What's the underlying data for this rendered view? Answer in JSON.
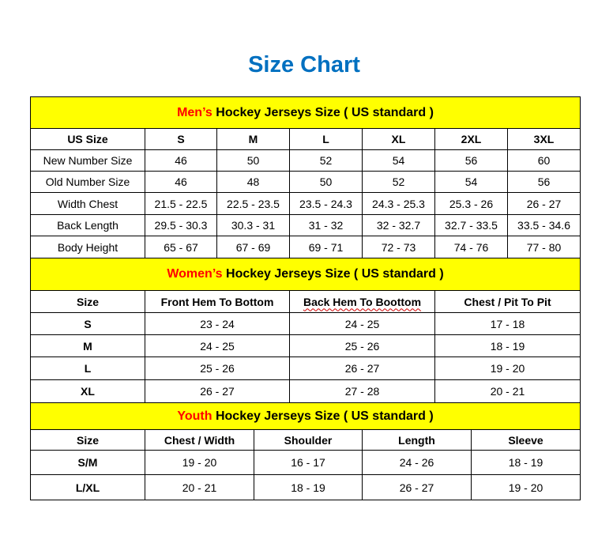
{
  "title": "Size Chart",
  "colors": {
    "title": "#0070c0",
    "header_bg": "#ffff00",
    "accent": "#ff0000"
  },
  "sections": [
    {
      "id": "mens",
      "header_accent": "Men’s",
      "header_rest": " Hockey Jerseys Size ( US standard )",
      "columns": [
        "US Size",
        "S",
        "M",
        "L",
        "XL",
        "2XL",
        "3XL"
      ],
      "rows": [
        [
          "New Number Size",
          "46",
          "50",
          "52",
          "54",
          "56",
          "60"
        ],
        [
          "Old Number Size",
          "46",
          "48",
          "50",
          "52",
          "54",
          "56"
        ],
        [
          "Width Chest",
          "21.5 - 22.5",
          "22.5 - 23.5",
          "23.5 - 24.3",
          "24.3 - 25.3",
          "25.3 - 26",
          "26 - 27"
        ],
        [
          "Back Length",
          "29.5 - 30.3",
          "30.3 - 31",
          "31 - 32",
          "32 - 32.7",
          "32.7 - 33.5",
          "33.5 - 34.6"
        ],
        [
          "Body Height",
          "65 - 67",
          "67 - 69",
          "69 - 71",
          "72 - 73",
          "74 - 76",
          "77 - 80"
        ]
      ]
    },
    {
      "id": "womens",
      "header_accent": "Women’s",
      "header_rest": " Hockey Jerseys Size ( US standard )",
      "columns": [
        "Size",
        "Front Hem To Bottom",
        "Back Hem To Boottom",
        "Chest / Pit To Pit"
      ],
      "rows": [
        [
          "S",
          "23 - 24",
          "24 - 25",
          "17 - 18"
        ],
        [
          "M",
          "24 - 25",
          "25 - 26",
          "18 - 19"
        ],
        [
          "L",
          "25 - 26",
          "26 - 27",
          "19 - 20"
        ],
        [
          "XL",
          "26 - 27",
          "27 - 28",
          "20 - 21"
        ]
      ]
    },
    {
      "id": "youth",
      "header_accent": "Youth",
      "header_rest": " Hockey Jerseys Size ( US standard )",
      "columns": [
        "Size",
        "Chest / Width",
        "Shoulder",
        "Length",
        "Sleeve"
      ],
      "rows": [
        [
          "S/M",
          "19 - 20",
          "16 - 17",
          "24 - 26",
          "18 - 19"
        ],
        [
          "L/XL",
          "20 - 21",
          "18 - 19",
          "26 - 27",
          "19 - 20"
        ]
      ]
    }
  ]
}
